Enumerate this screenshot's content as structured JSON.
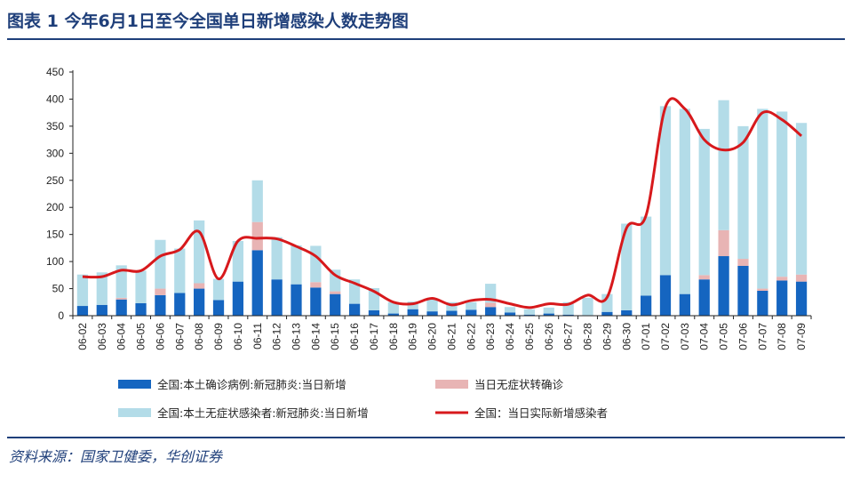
{
  "title": "图表 1   今年6月1日至今全国单日新增感染人数走势图",
  "source": "资料来源：国家卫健委，华创证券",
  "chart_data": {
    "type": "bar",
    "stacked": true,
    "title": "",
    "xlabel": "",
    "ylabel": "",
    "ylim": [
      0,
      450
    ],
    "yticks": [
      0,
      50,
      100,
      150,
      200,
      250,
      300,
      350,
      400,
      450
    ],
    "grid": false,
    "legend_position": "bottom",
    "categories": [
      "06-02",
      "06-03",
      "06-04",
      "06-05",
      "06-06",
      "06-07",
      "06-08",
      "06-09",
      "06-10",
      "06-11",
      "06-12",
      "06-13",
      "06-14",
      "06-15",
      "06-16",
      "06-17",
      "06-18",
      "06-19",
      "06-20",
      "06-21",
      "06-22",
      "06-23",
      "06-24",
      "06-25",
      "06-26",
      "06-27",
      "06-28",
      "06-29",
      "06-30",
      "07-01",
      "07-02",
      "07-03",
      "07-04",
      "07-05",
      "07-06",
      "07-07",
      "07-08",
      "07-09"
    ],
    "series": [
      {
        "name": "全国:本土确诊病例:新冠肺炎:当日新增",
        "type": "bar",
        "color": "#1565c0",
        "values": [
          18,
          20,
          30,
          23,
          38,
          42,
          50,
          29,
          63,
          121,
          67,
          58,
          52,
          40,
          22,
          10,
          4,
          12,
          8,
          9,
          11,
          16,
          6,
          2,
          4,
          2,
          1,
          7,
          10,
          37,
          75,
          40,
          67,
          110,
          92,
          46,
          65,
          63
        ]
      },
      {
        "name": "当日无症状转确诊",
        "type": "bar",
        "color": "#e8b4b4",
        "values": [
          0,
          0,
          3,
          0,
          12,
          0,
          10,
          0,
          0,
          52,
          0,
          0,
          10,
          5,
          0,
          0,
          0,
          0,
          0,
          0,
          0,
          8,
          0,
          0,
          0,
          0,
          0,
          0,
          0,
          0,
          0,
          0,
          8,
          48,
          13,
          4,
          7,
          13
        ]
      },
      {
        "name": "全国:本土无症状感染者:新冠肺炎:当日新增",
        "type": "bar",
        "color": "#b3dce8",
        "values": [
          58,
          60,
          60,
          60,
          90,
          82,
          116,
          39,
          75,
          77,
          78,
          72,
          67,
          40,
          45,
          41,
          21,
          14,
          24,
          16,
          14,
          35,
          10,
          10,
          11,
          23,
          32,
          33,
          160,
          146,
          312,
          342,
          270,
          240,
          245,
          332,
          305,
          280
        ]
      },
      {
        "name": "全国：当日实际新增感染者",
        "type": "line",
        "color": "#d7191c",
        "values": [
          72,
          72,
          84,
          83,
          110,
          122,
          155,
          68,
          138,
          143,
          142,
          128,
          110,
          75,
          60,
          45,
          25,
          22,
          32,
          20,
          28,
          30,
          22,
          15,
          22,
          21,
          38,
          34,
          162,
          185,
          385,
          382,
          325,
          306,
          320,
          375,
          362,
          332
        ]
      }
    ]
  }
}
